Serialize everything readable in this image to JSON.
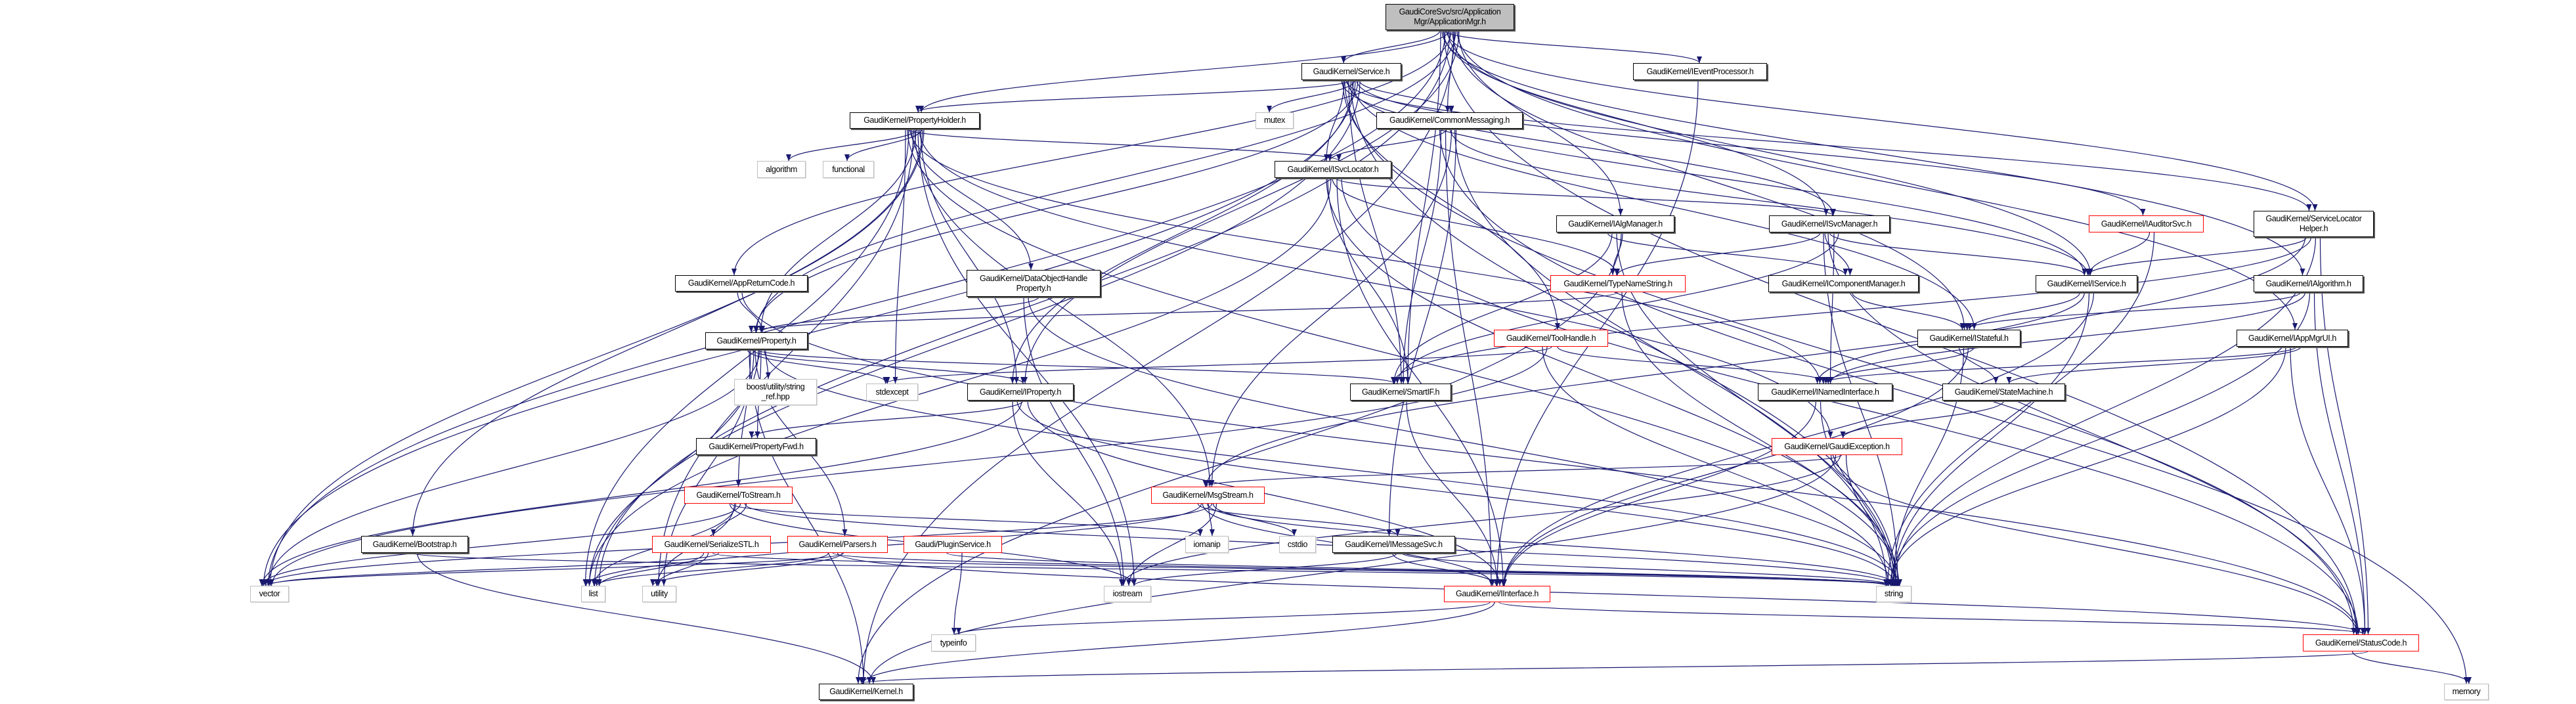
{
  "edge_color": "#191970",
  "colors": {
    "normal_border": "#000000",
    "truncated_border": "#ff0000",
    "external_border": "#bfbfbf",
    "root_fill": "#bfbfbf"
  },
  "nodes": [
    {
      "id": "root",
      "lines": [
        "GaudiCoreSvc/src/Application",
        "Mgr/ApplicationMgr.h"
      ],
      "kind": "root"
    },
    {
      "id": "service",
      "lines": [
        "GaudiKernel/Service.h"
      ],
      "kind": "normal"
    },
    {
      "id": "ieventprocessor",
      "lines": [
        "GaudiKernel/IEventProcessor.h"
      ],
      "kind": "normal"
    },
    {
      "id": "propertyholder",
      "lines": [
        "GaudiKernel/PropertyHolder.h"
      ],
      "kind": "normal"
    },
    {
      "id": "mutex",
      "lines": [
        "mutex"
      ],
      "kind": "external"
    },
    {
      "id": "commonmessaging",
      "lines": [
        "GaudiKernel/CommonMessaging.h"
      ],
      "kind": "normal"
    },
    {
      "id": "algorithm",
      "lines": [
        "algorithm"
      ],
      "kind": "external"
    },
    {
      "id": "functional",
      "lines": [
        "functional"
      ],
      "kind": "external"
    },
    {
      "id": "isvclocator",
      "lines": [
        "GaudiKernel/ISvcLocator.h"
      ],
      "kind": "normal"
    },
    {
      "id": "isvcmanager",
      "lines": [
        "GaudiKernel/ISvcManager.h"
      ],
      "kind": "normal"
    },
    {
      "id": "iauditorsvc",
      "lines": [
        "GaudiKernel/IAuditorSvc.h"
      ],
      "kind": "truncated"
    },
    {
      "id": "servicelocatorhelper",
      "lines": [
        "GaudiKernel/ServiceLocator",
        "Helper.h"
      ],
      "kind": "normal"
    },
    {
      "id": "ialgmanager",
      "lines": [
        "GaudiKernel/IAlgManager.h"
      ],
      "kind": "normal"
    },
    {
      "id": "appreturncode",
      "lines": [
        "GaudiKernel/AppReturnCode.h"
      ],
      "kind": "normal"
    },
    {
      "id": "dataobjecthandleproperty",
      "lines": [
        "GaudiKernel/DataObjectHandle",
        "Property.h"
      ],
      "kind": "normal"
    },
    {
      "id": "typenamestring",
      "lines": [
        "GaudiKernel/TypeNameString.h"
      ],
      "kind": "truncated"
    },
    {
      "id": "icomponentmanager",
      "lines": [
        "GaudiKernel/IComponentManager.h"
      ],
      "kind": "normal"
    },
    {
      "id": "iservice",
      "lines": [
        "GaudiKernel/IService.h"
      ],
      "kind": "normal"
    },
    {
      "id": "ialgorithm",
      "lines": [
        "GaudiKernel/IAlgorithm.h"
      ],
      "kind": "normal"
    },
    {
      "id": "property",
      "lines": [
        "GaudiKernel/Property.h"
      ],
      "kind": "normal"
    },
    {
      "id": "toolhandle",
      "lines": [
        "GaudiKernel/ToolHandle.h"
      ],
      "kind": "truncated"
    },
    {
      "id": "istateful",
      "lines": [
        "GaudiKernel/IStateful.h"
      ],
      "kind": "normal"
    },
    {
      "id": "iappmgrui",
      "lines": [
        "GaudiKernel/IAppMgrUI.h"
      ],
      "kind": "normal"
    },
    {
      "id": "boost",
      "lines": [
        "boost/utility/string",
        "_ref.hpp"
      ],
      "kind": "external"
    },
    {
      "id": "stdexcept",
      "lines": [
        "stdexcept"
      ],
      "kind": "external"
    },
    {
      "id": "iproperty",
      "lines": [
        "GaudiKernel/IProperty.h"
      ],
      "kind": "normal"
    },
    {
      "id": "smartif",
      "lines": [
        "GaudiKernel/SmartIF.h"
      ],
      "kind": "normal"
    },
    {
      "id": "inamedinterface",
      "lines": [
        "GaudiKernel/INamedInterface.h"
      ],
      "kind": "normal"
    },
    {
      "id": "statemachine",
      "lines": [
        "GaudiKernel/StateMachine.h"
      ],
      "kind": "normal"
    },
    {
      "id": "propertyfwd",
      "lines": [
        "GaudiKernel/PropertyFwd.h"
      ],
      "kind": "normal"
    },
    {
      "id": "gaudiexception",
      "lines": [
        "GaudiKernel/GaudiException.h"
      ],
      "kind": "truncated"
    },
    {
      "id": "tostream",
      "lines": [
        "GaudiKernel/ToStream.h"
      ],
      "kind": "truncated"
    },
    {
      "id": "msgstream",
      "lines": [
        "GaudiKernel/MsgStream.h"
      ],
      "kind": "truncated"
    },
    {
      "id": "bootstrap",
      "lines": [
        "GaudiKernel/Bootstrap.h"
      ],
      "kind": "normal"
    },
    {
      "id": "serializestl",
      "lines": [
        "GaudiKernel/SerializeSTL.h"
      ],
      "kind": "truncated"
    },
    {
      "id": "parsers",
      "lines": [
        "GaudiKernel/Parsers.h"
      ],
      "kind": "truncated"
    },
    {
      "id": "pluginservice",
      "lines": [
        "Gaudi/PluginService.h"
      ],
      "kind": "truncated"
    },
    {
      "id": "iomanip",
      "lines": [
        "iomanip"
      ],
      "kind": "external"
    },
    {
      "id": "cstdio",
      "lines": [
        "cstdio"
      ],
      "kind": "external"
    },
    {
      "id": "imessagesvc",
      "lines": [
        "GaudiKernel/IMessageSvc.h"
      ],
      "kind": "normal"
    },
    {
      "id": "vector",
      "lines": [
        "vector"
      ],
      "kind": "external"
    },
    {
      "id": "list",
      "lines": [
        "list"
      ],
      "kind": "external"
    },
    {
      "id": "utility",
      "lines": [
        "utility"
      ],
      "kind": "external"
    },
    {
      "id": "iostream",
      "lines": [
        "iostream"
      ],
      "kind": "external"
    },
    {
      "id": "iinterface",
      "lines": [
        "GaudiKernel/IInterface.h"
      ],
      "kind": "truncated"
    },
    {
      "id": "string",
      "lines": [
        "string"
      ],
      "kind": "external"
    },
    {
      "id": "typeinfo",
      "lines": [
        "typeinfo"
      ],
      "kind": "external"
    },
    {
      "id": "statuscode",
      "lines": [
        "GaudiKernel/StatusCode.h"
      ],
      "kind": "truncated"
    },
    {
      "id": "kernel",
      "lines": [
        "GaudiKernel/Kernel.h"
      ],
      "kind": "normal"
    },
    {
      "id": "memory",
      "lines": [
        "memory"
      ],
      "kind": "external"
    }
  ],
  "edges": [
    [
      "root",
      "service"
    ],
    [
      "root",
      "ieventprocessor"
    ],
    [
      "root",
      "propertyholder"
    ],
    [
      "root",
      "commonmessaging"
    ],
    [
      "root",
      "ialgmanager"
    ],
    [
      "root",
      "isvcmanager"
    ],
    [
      "root",
      "iservice"
    ],
    [
      "root",
      "istateful"
    ],
    [
      "root",
      "iappmgrui"
    ],
    [
      "root",
      "ialgorithm"
    ],
    [
      "root",
      "servicelocatorhelper"
    ],
    [
      "root",
      "appreturncode"
    ],
    [
      "root",
      "property"
    ],
    [
      "root",
      "smartif"
    ],
    [
      "root",
      "vector"
    ],
    [
      "root",
      "list"
    ],
    [
      "root",
      "kernel"
    ],
    [
      "root",
      "iproperty"
    ],
    [
      "root",
      "statuscode"
    ],
    [
      "service",
      "propertyholder"
    ],
    [
      "service",
      "mutex"
    ],
    [
      "service",
      "commonmessaging"
    ],
    [
      "service",
      "isvclocator"
    ],
    [
      "service",
      "smartif"
    ],
    [
      "service",
      "iproperty"
    ],
    [
      "service",
      "property"
    ],
    [
      "service",
      "toolhandle"
    ],
    [
      "service",
      "iservice"
    ],
    [
      "service",
      "istateful"
    ],
    [
      "service",
      "iauditorsvc"
    ],
    [
      "service",
      "isvcmanager"
    ],
    [
      "service",
      "servicelocatorhelper"
    ],
    [
      "service",
      "string"
    ],
    [
      "service",
      "vector"
    ],
    [
      "service",
      "list"
    ],
    [
      "service",
      "statuscode"
    ],
    [
      "ieventprocessor",
      "iinterface"
    ],
    [
      "propertyholder",
      "algorithm"
    ],
    [
      "propertyholder",
      "functional"
    ],
    [
      "propertyholder",
      "isvclocator"
    ],
    [
      "propertyholder",
      "dataobjecthandleproperty"
    ],
    [
      "propertyholder",
      "property"
    ],
    [
      "propertyholder",
      "iproperty"
    ],
    [
      "propertyholder",
      "stdexcept"
    ],
    [
      "propertyholder",
      "inamedinterface"
    ],
    [
      "propertyholder",
      "msgstream"
    ],
    [
      "propertyholder",
      "gaudiexception"
    ],
    [
      "propertyholder",
      "vector"
    ],
    [
      "propertyholder",
      "list"
    ],
    [
      "propertyholder",
      "utility"
    ],
    [
      "propertyholder",
      "iostream"
    ],
    [
      "propertyholder",
      "bootstrap"
    ],
    [
      "propertyholder",
      "string"
    ],
    [
      "commonmessaging",
      "isvclocator"
    ],
    [
      "commonmessaging",
      "msgstream"
    ],
    [
      "commonmessaging",
      "imessagesvc"
    ],
    [
      "commonmessaging",
      "smartif"
    ],
    [
      "commonmessaging",
      "iinterface"
    ],
    [
      "commonmessaging",
      "iservice"
    ],
    [
      "commonmessaging",
      "string"
    ],
    [
      "commonmessaging",
      "memory"
    ],
    [
      "isvclocator",
      "smartif"
    ],
    [
      "isvclocator",
      "typenamestring"
    ],
    [
      "isvclocator",
      "iinterface"
    ],
    [
      "isvclocator",
      "statuscode"
    ],
    [
      "isvclocator",
      "string"
    ],
    [
      "isvclocator",
      "list"
    ],
    [
      "isvclocator",
      "isvcmanager"
    ],
    [
      "ialgmanager",
      "typenamestring"
    ],
    [
      "ialgmanager",
      "icomponentmanager"
    ],
    [
      "ialgmanager",
      "smartif"
    ],
    [
      "ialgmanager",
      "string"
    ],
    [
      "ialgmanager",
      "kernel"
    ],
    [
      "isvcmanager",
      "typenamestring"
    ],
    [
      "isvcmanager",
      "icomponentmanager"
    ],
    [
      "isvcmanager",
      "iservice"
    ],
    [
      "isvcmanager",
      "inamedinterface"
    ],
    [
      "isvcmanager",
      "smartif"
    ],
    [
      "isvcmanager",
      "string"
    ],
    [
      "isvcmanager",
      "statuscode"
    ],
    [
      "iauditorsvc",
      "iservice"
    ],
    [
      "iauditorsvc",
      "string"
    ],
    [
      "servicelocatorhelper",
      "iservice"
    ],
    [
      "servicelocatorhelper",
      "smartif"
    ],
    [
      "servicelocatorhelper",
      "string"
    ],
    [
      "servicelocatorhelper",
      "statuscode"
    ],
    [
      "servicelocatorhelper",
      "msgstream"
    ],
    [
      "appreturncode",
      "property"
    ],
    [
      "appreturncode",
      "statuscode"
    ],
    [
      "dataobjecthandleproperty",
      "property"
    ],
    [
      "dataobjecthandleproperty",
      "iostream"
    ],
    [
      "dataobjecthandleproperty",
      "string"
    ],
    [
      "typenamestring",
      "property"
    ],
    [
      "typenamestring",
      "string"
    ],
    [
      "icomponentmanager",
      "istateful"
    ],
    [
      "iservice",
      "istateful"
    ],
    [
      "iservice",
      "inamedinterface"
    ],
    [
      "iservice",
      "string"
    ],
    [
      "iservice",
      "iinterface"
    ],
    [
      "ialgorithm",
      "istateful"
    ],
    [
      "ialgorithm",
      "inamedinterface"
    ],
    [
      "ialgorithm",
      "string"
    ],
    [
      "ialgorithm",
      "statuscode"
    ],
    [
      "property",
      "stdexcept"
    ],
    [
      "property",
      "iproperty"
    ],
    [
      "property",
      "smartif"
    ],
    [
      "property",
      "propertyfwd"
    ],
    [
      "property",
      "boost"
    ],
    [
      "property",
      "tostream"
    ],
    [
      "property",
      "parsers"
    ],
    [
      "property",
      "vector"
    ],
    [
      "property",
      "string"
    ],
    [
      "property",
      "kernel"
    ],
    [
      "property",
      "utility"
    ],
    [
      "property",
      "list"
    ],
    [
      "toolhandle",
      "inamedinterface"
    ],
    [
      "toolhandle",
      "string"
    ],
    [
      "toolhandle",
      "vector"
    ],
    [
      "toolhandle",
      "stdexcept"
    ],
    [
      "istateful",
      "inamedinterface"
    ],
    [
      "istateful",
      "statemachine"
    ],
    [
      "istateful",
      "string"
    ],
    [
      "istateful",
      "iinterface"
    ],
    [
      "iappmgrui",
      "inamedinterface"
    ],
    [
      "iappmgrui",
      "statemachine"
    ],
    [
      "iappmgrui",
      "string"
    ],
    [
      "iappmgrui",
      "statuscode"
    ],
    [
      "iproperty",
      "propertyfwd"
    ],
    [
      "iproperty",
      "iinterface"
    ],
    [
      "iproperty",
      "iostream"
    ],
    [
      "iproperty",
      "string"
    ],
    [
      "iproperty",
      "vector"
    ],
    [
      "smartif",
      "iinterface"
    ],
    [
      "inamedinterface",
      "iinterface"
    ],
    [
      "inamedinterface",
      "string"
    ],
    [
      "statemachine",
      "gaudiexception"
    ],
    [
      "gaudiexception",
      "msgstream"
    ],
    [
      "gaudiexception",
      "string"
    ],
    [
      "gaudiexception",
      "statuscode"
    ],
    [
      "gaudiexception",
      "kernel"
    ],
    [
      "gaudiexception",
      "iostream"
    ],
    [
      "tostream",
      "serializestl"
    ],
    [
      "tostream",
      "iomanip"
    ],
    [
      "tostream",
      "list"
    ],
    [
      "tostream",
      "vector"
    ],
    [
      "tostream",
      "string"
    ],
    [
      "tostream",
      "iostream"
    ],
    [
      "tostream",
      "utility"
    ],
    [
      "msgstream",
      "iomanip"
    ],
    [
      "msgstream",
      "cstdio"
    ],
    [
      "msgstream",
      "imessagesvc"
    ],
    [
      "msgstream",
      "iinterface"
    ],
    [
      "msgstream",
      "string"
    ],
    [
      "msgstream",
      "vector"
    ],
    [
      "msgstream",
      "iostream"
    ],
    [
      "msgstream",
      "list"
    ],
    [
      "bootstrap",
      "string"
    ],
    [
      "bootstrap",
      "kernel"
    ],
    [
      "serializestl",
      "vector"
    ],
    [
      "serializestl",
      "list"
    ],
    [
      "serializestl",
      "utility"
    ],
    [
      "serializestl",
      "string"
    ],
    [
      "parsers",
      "vector"
    ],
    [
      "parsers",
      "list"
    ],
    [
      "parsers",
      "string"
    ],
    [
      "parsers",
      "statuscode"
    ],
    [
      "parsers",
      "utility"
    ],
    [
      "pluginservice",
      "typeinfo"
    ],
    [
      "pluginservice",
      "string"
    ],
    [
      "imessagesvc",
      "iinterface"
    ],
    [
      "imessagesvc",
      "iostream"
    ],
    [
      "imessagesvc",
      "string"
    ],
    [
      "iinterface",
      "typeinfo"
    ],
    [
      "iinterface",
      "kernel"
    ],
    [
      "iinterface",
      "statuscode"
    ],
    [
      "statuscode",
      "kernel"
    ],
    [
      "statuscode",
      "memory"
    ]
  ]
}
